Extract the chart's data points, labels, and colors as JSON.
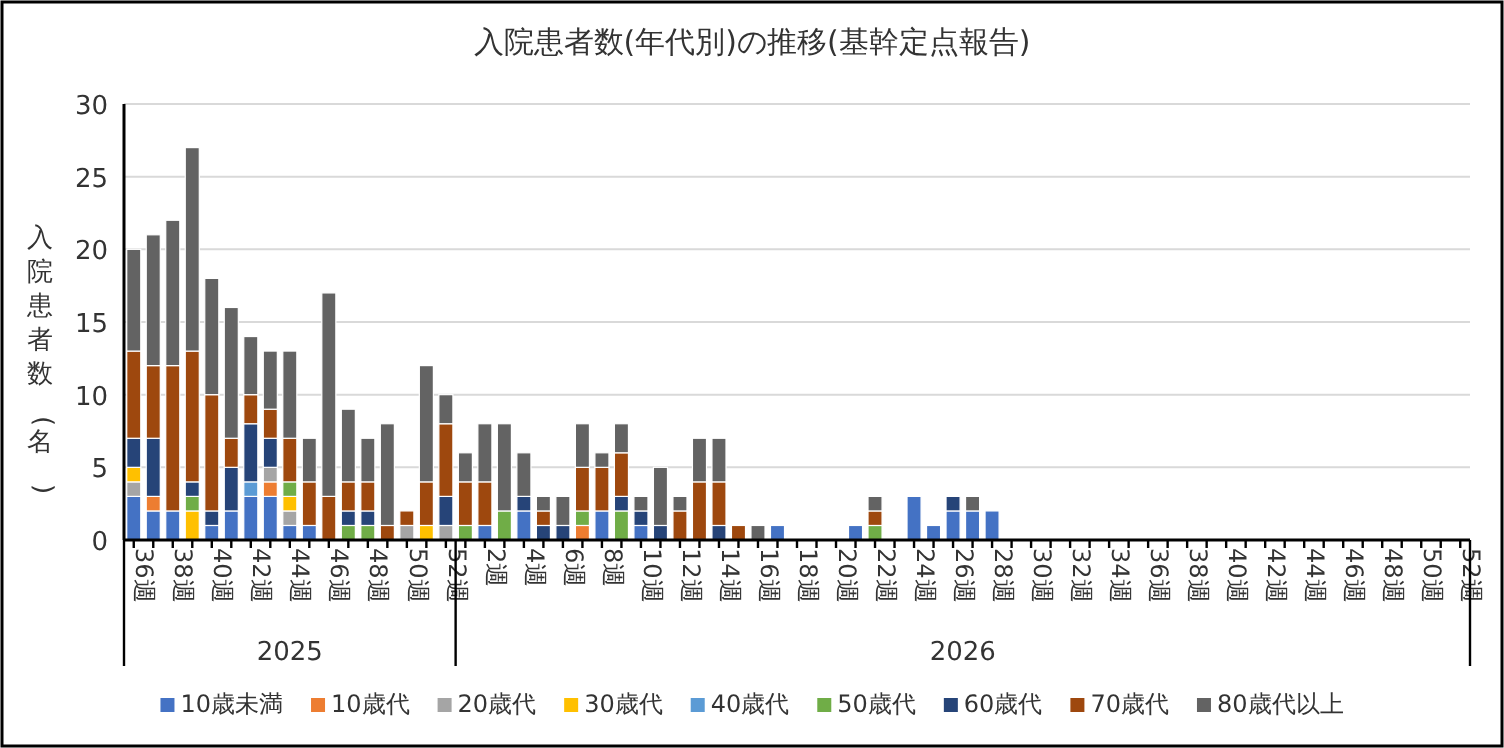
{
  "chart_data": {
    "type": "bar",
    "stacked": true,
    "title": "入院患者数(年代別)の推移(基幹定点報告)",
    "ylabel": "入院患者数(名)",
    "categories": [
      "36週",
      null,
      "38週",
      null,
      "40週",
      null,
      "42週",
      null,
      "44週",
      null,
      "46週",
      null,
      "48週",
      null,
      "50週",
      null,
      "52週",
      null,
      "2週",
      null,
      "4週",
      null,
      "6週",
      null,
      "8週",
      null,
      "10週",
      null,
      "12週",
      null,
      "14週",
      null,
      "16週",
      null,
      "18週",
      null,
      "20週",
      null,
      "22週",
      null,
      "24週",
      null,
      "26週",
      null,
      "28週",
      null,
      "30週",
      null,
      "32週",
      null,
      "34週",
      null,
      "36週",
      null,
      "38週",
      null,
      "40週",
      null,
      "42週",
      null,
      "44週",
      null,
      "46週",
      null,
      "48週",
      null,
      "50週",
      null,
      "52週"
    ],
    "annotations": [
      "2025",
      "2026"
    ],
    "ylim": [
      0,
      30
    ],
    "yticks": [
      0,
      5,
      10,
      15,
      20,
      25,
      30
    ],
    "grid": "y",
    "legend": "bottom",
    "series": [
      {
        "name": "10歳未満",
        "color": "#4472c4",
        "values": [
          3,
          2,
          2,
          0,
          1,
          2,
          3,
          3,
          1,
          1,
          0,
          0,
          0,
          0,
          0,
          0,
          0,
          0,
          1,
          0,
          2,
          0,
          0,
          0,
          2,
          0,
          1,
          0,
          0,
          0,
          0,
          0,
          0,
          1,
          0,
          0,
          0,
          1,
          0,
          0,
          3,
          1,
          2,
          2,
          2,
          0,
          0,
          0,
          0,
          0,
          0,
          0,
          0,
          0,
          0,
          0,
          0,
          0,
          0,
          0,
          0,
          0,
          0,
          0,
          0,
          0,
          0,
          0,
          0
        ]
      },
      {
        "name": "10歳代",
        "color": "#ed7d31",
        "values": [
          0,
          1,
          0,
          0,
          0,
          0,
          0,
          1,
          0,
          0,
          0,
          0,
          0,
          0,
          0,
          0,
          0,
          0,
          0,
          0,
          0,
          0,
          0,
          1,
          0,
          0,
          0,
          0,
          0,
          0,
          0,
          0,
          0,
          0,
          0,
          0,
          0,
          0,
          0,
          0,
          0,
          0,
          0,
          0,
          0,
          0,
          0,
          0,
          0,
          0,
          0,
          0,
          0,
          0,
          0,
          0,
          0,
          0,
          0,
          0,
          0,
          0,
          0,
          0,
          0,
          0,
          0,
          0,
          0
        ]
      },
      {
        "name": "20歳代",
        "color": "#a5a5a5",
        "values": [
          1,
          0,
          0,
          0,
          0,
          0,
          0,
          1,
          1,
          0,
          0,
          0,
          0,
          0,
          1,
          0,
          1,
          0,
          0,
          0,
          0,
          0,
          0,
          0,
          0,
          0,
          0,
          0,
          0,
          0,
          0,
          0,
          0,
          0,
          0,
          0,
          0,
          0,
          0,
          0,
          0,
          0,
          0,
          0,
          0,
          0,
          0,
          0,
          0,
          0,
          0,
          0,
          0,
          0,
          0,
          0,
          0,
          0,
          0,
          0,
          0,
          0,
          0,
          0,
          0,
          0,
          0,
          0,
          0
        ]
      },
      {
        "name": "30歳代",
        "color": "#ffc000",
        "values": [
          1,
          0,
          0,
          2,
          0,
          0,
          0,
          0,
          1,
          0,
          0,
          0,
          0,
          0,
          0,
          1,
          0,
          0,
          0,
          0,
          0,
          0,
          0,
          0,
          0,
          0,
          0,
          0,
          0,
          0,
          0,
          0,
          0,
          0,
          0,
          0,
          0,
          0,
          0,
          0,
          0,
          0,
          0,
          0,
          0,
          0,
          0,
          0,
          0,
          0,
          0,
          0,
          0,
          0,
          0,
          0,
          0,
          0,
          0,
          0,
          0,
          0,
          0,
          0,
          0,
          0,
          0,
          0,
          0
        ]
      },
      {
        "name": "40歳代",
        "color": "#5b9bd5",
        "values": [
          0,
          0,
          0,
          0,
          0,
          0,
          1,
          0,
          0,
          0,
          0,
          0,
          0,
          0,
          0,
          0,
          0,
          0,
          0,
          0,
          0,
          0,
          0,
          0,
          0,
          0,
          0,
          0,
          0,
          0,
          0,
          0,
          0,
          0,
          0,
          0,
          0,
          0,
          0,
          0,
          0,
          0,
          0,
          0,
          0,
          0,
          0,
          0,
          0,
          0,
          0,
          0,
          0,
          0,
          0,
          0,
          0,
          0,
          0,
          0,
          0,
          0,
          0,
          0,
          0,
          0,
          0,
          0,
          0
        ]
      },
      {
        "name": "50歳代",
        "color": "#70ad47",
        "values": [
          0,
          0,
          0,
          1,
          0,
          0,
          0,
          0,
          1,
          0,
          0,
          1,
          1,
          0,
          0,
          0,
          0,
          1,
          0,
          2,
          0,
          0,
          0,
          1,
          0,
          2,
          0,
          0,
          0,
          0,
          0,
          0,
          0,
          0,
          0,
          0,
          0,
          0,
          1,
          0,
          0,
          0,
          0,
          0,
          0,
          0,
          0,
          0,
          0,
          0,
          0,
          0,
          0,
          0,
          0,
          0,
          0,
          0,
          0,
          0,
          0,
          0,
          0,
          0,
          0,
          0,
          0,
          0,
          0
        ]
      },
      {
        "name": "60歳代",
        "color": "#264478",
        "values": [
          2,
          4,
          0,
          1,
          1,
          3,
          4,
          2,
          0,
          0,
          0,
          1,
          1,
          0,
          0,
          0,
          2,
          0,
          0,
          0,
          1,
          1,
          1,
          0,
          0,
          1,
          1,
          1,
          0,
          0,
          1,
          0,
          0,
          0,
          0,
          0,
          0,
          0,
          0,
          0,
          0,
          0,
          1,
          0,
          0,
          0,
          0,
          0,
          0,
          0,
          0,
          0,
          0,
          0,
          0,
          0,
          0,
          0,
          0,
          0,
          0,
          0,
          0,
          0,
          0,
          0,
          0,
          0,
          0
        ]
      },
      {
        "name": "70歳代",
        "color": "#9e480e",
        "values": [
          6,
          5,
          10,
          9,
          8,
          2,
          2,
          2,
          3,
          3,
          3,
          2,
          2,
          1,
          1,
          3,
          5,
          3,
          3,
          0,
          0,
          1,
          0,
          3,
          3,
          3,
          0,
          0,
          2,
          4,
          3,
          1,
          0,
          0,
          0,
          0,
          0,
          0,
          1,
          0,
          0,
          0,
          0,
          0,
          0,
          0,
          0,
          0,
          0,
          0,
          0,
          0,
          0,
          0,
          0,
          0,
          0,
          0,
          0,
          0,
          0,
          0,
          0,
          0,
          0,
          0,
          0,
          0,
          0
        ]
      },
      {
        "name": "80歳代以上",
        "color": "#636363",
        "values": [
          7,
          9,
          10,
          14,
          8,
          9,
          4,
          4,
          6,
          3,
          14,
          5,
          3,
          7,
          0,
          8,
          2,
          2,
          4,
          6,
          3,
          1,
          2,
          3,
          1,
          2,
          1,
          4,
          1,
          3,
          3,
          0,
          1,
          0,
          0,
          0,
          0,
          0,
          1,
          0,
          0,
          0,
          0,
          1,
          0,
          0,
          0,
          0,
          0,
          0,
          0,
          0,
          0,
          0,
          0,
          0,
          0,
          0,
          0,
          0,
          0,
          0,
          0,
          0,
          0,
          0,
          0,
          0,
          0
        ]
      }
    ]
  }
}
